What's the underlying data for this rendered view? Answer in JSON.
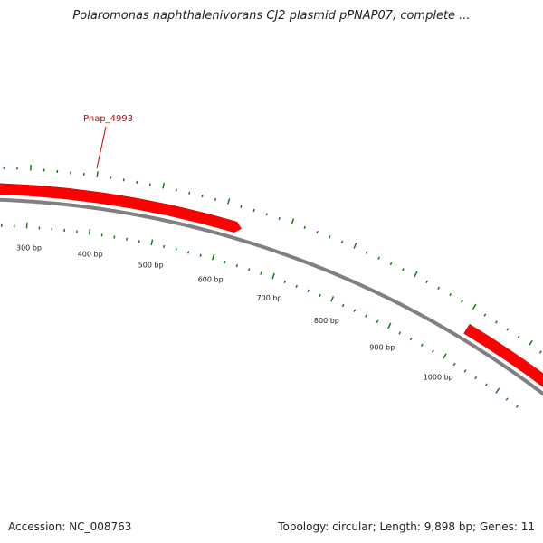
{
  "title": "Polaromonas naphthalenivorans CJ2 plasmid pPNAP07, complete ...",
  "accession": "Accession: NC_008763",
  "summary": "Topology: circular; Length: 9,898 bp; Genes: 11",
  "gene_label": "Pnap_4993",
  "colors": {
    "gene": "#ff0000",
    "gene_edge": "#cc0000",
    "backbone": "#808080",
    "tick": "#1a7a1a",
    "label_line": "#cc0000"
  },
  "tick_labels": [
    "300 bp",
    "400 bp",
    "500 bp",
    "600 bp",
    "700 bp",
    "800 bp",
    "900 bp",
    "1000 bp"
  ]
}
